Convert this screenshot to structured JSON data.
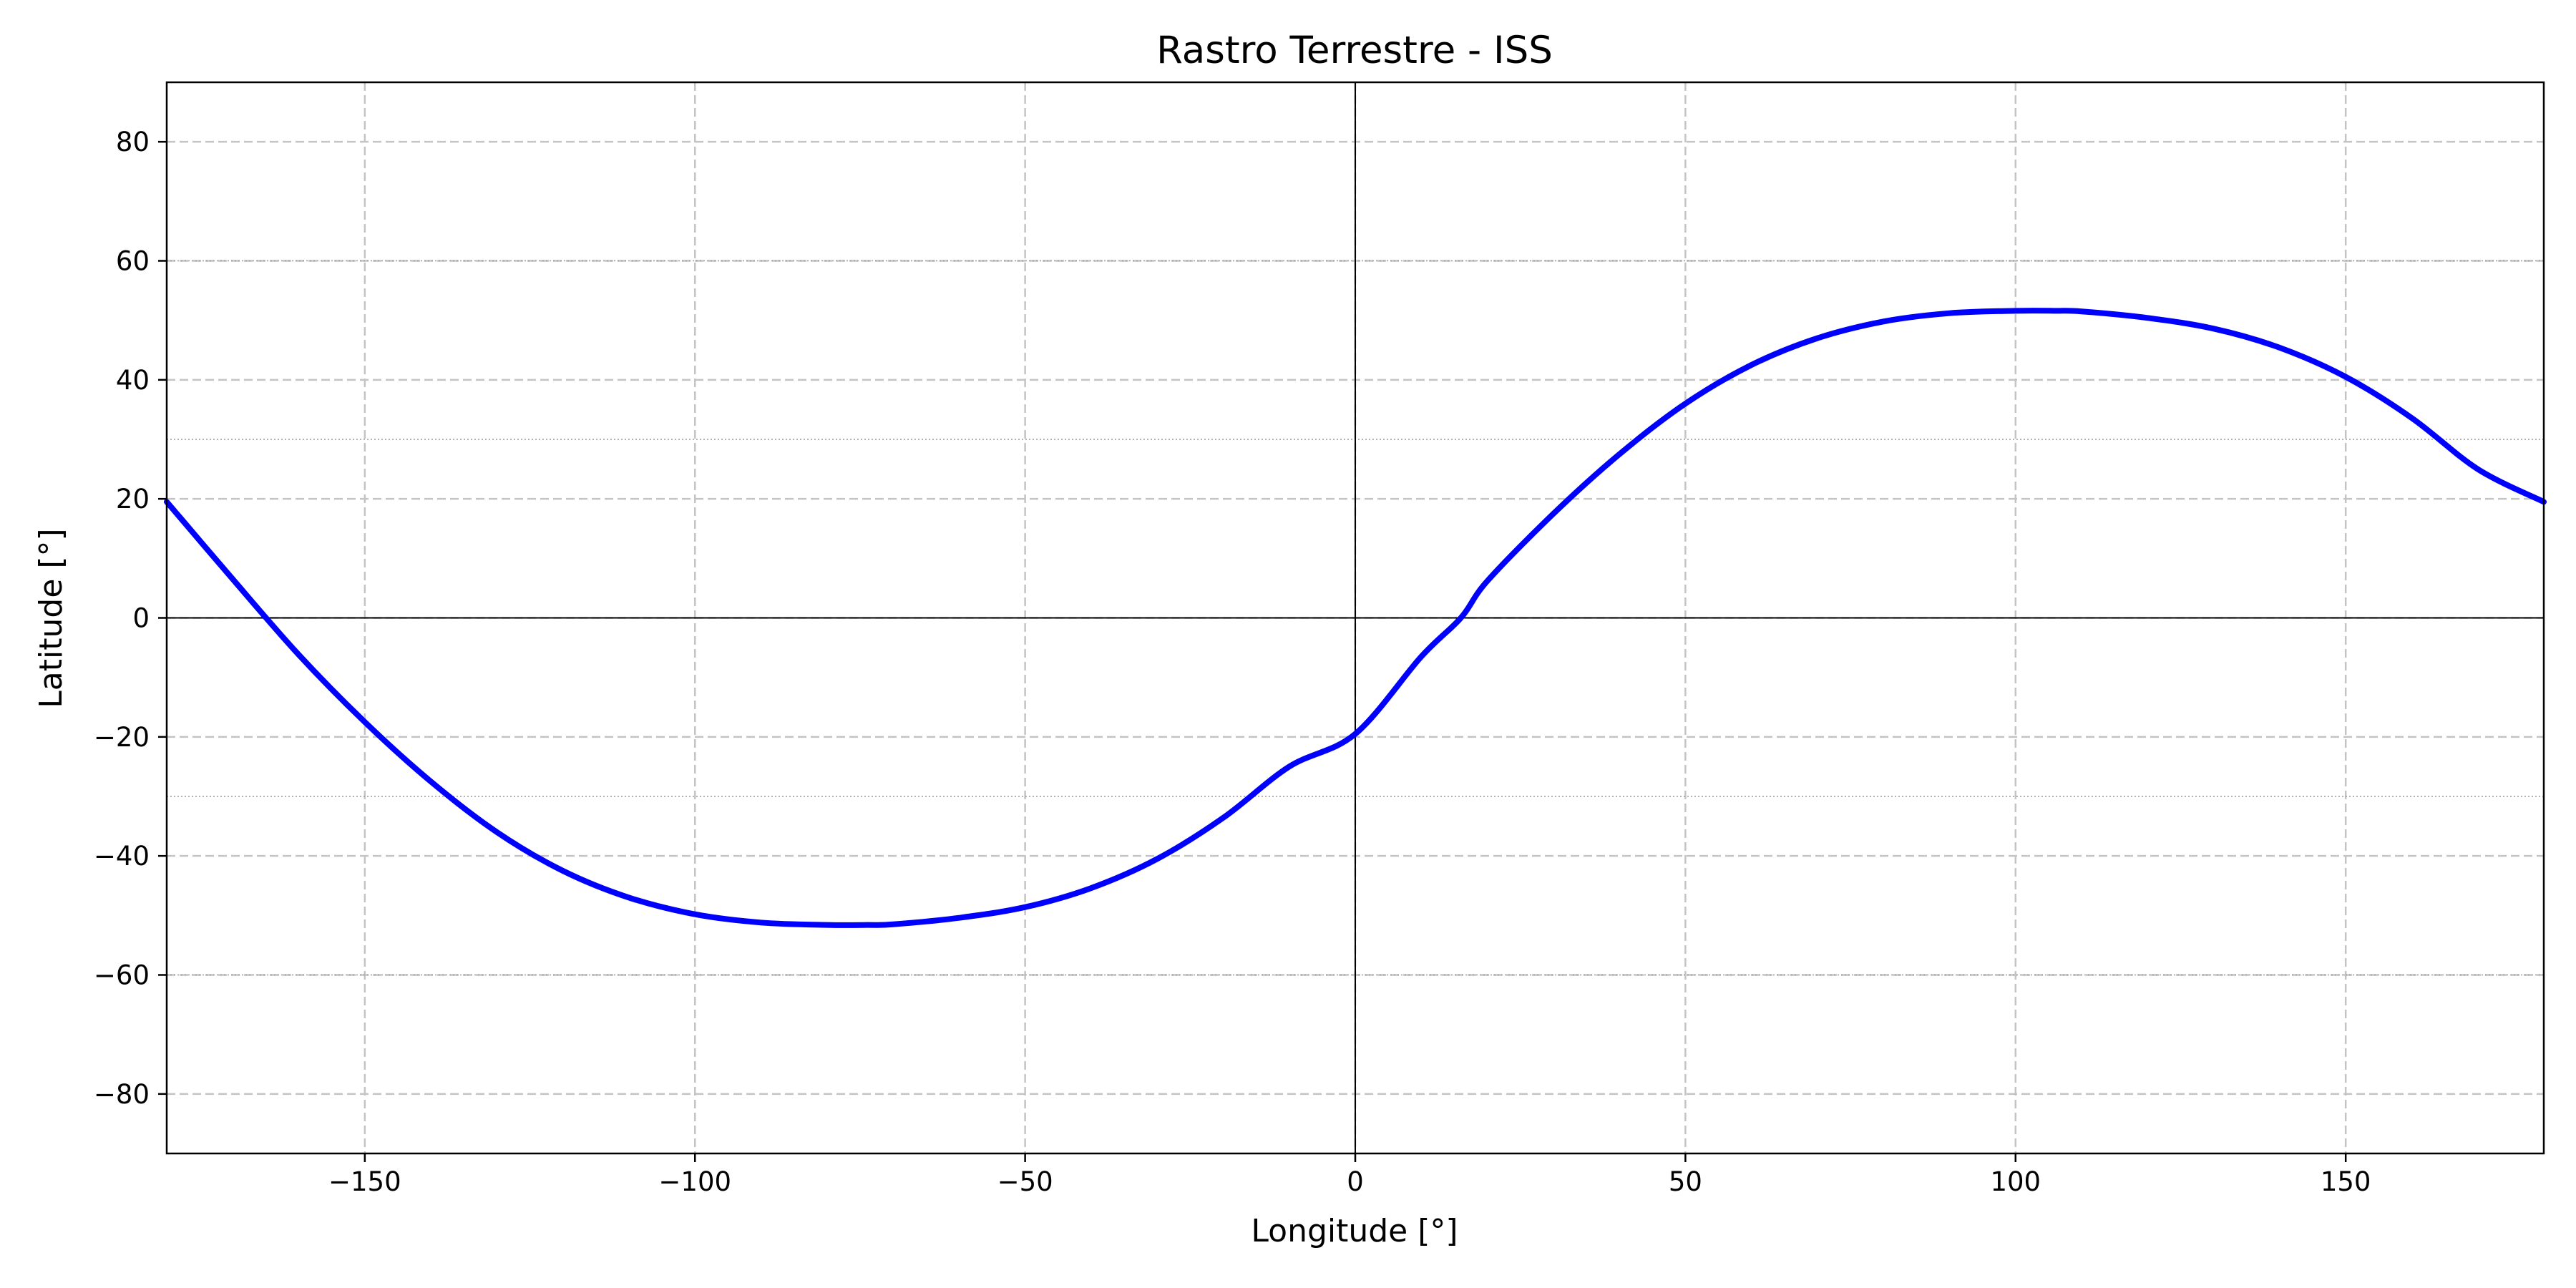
{
  "chart_data": {
    "type": "line",
    "title": "Rastro Terrestre - ISS",
    "xlabel": "Longitude [°]",
    "ylabel": "Latitude [°]",
    "xlim": [
      -180,
      180
    ],
    "ylim": [
      -90,
      90
    ],
    "xticks": [
      -150,
      -100,
      -50,
      0,
      50,
      100,
      150
    ],
    "yticks": [
      -80,
      -60,
      -40,
      -20,
      0,
      20,
      40,
      60,
      80
    ],
    "xtick_labels": [
      "−150",
      "−100",
      "−50",
      "0",
      "50",
      "100",
      "150"
    ],
    "ytick_labels": [
      "−80",
      "−60",
      "−40",
      "−20",
      "0",
      "20",
      "40",
      "60",
      "80"
    ],
    "grid": true,
    "reference_lines": {
      "horizontal": [
        0,
        -60,
        -30,
        30,
        60
      ],
      "vertical": [
        0
      ]
    },
    "series": [
      {
        "color": "#0000ff",
        "x": [
          -180,
          -170,
          -160,
          -150,
          -140,
          -130,
          -120,
          -110,
          -100,
          -90,
          -80,
          -74,
          -70,
          -60,
          -50,
          -40,
          -30,
          -20,
          -10,
          0,
          10,
          16,
          20,
          30,
          40,
          50,
          60,
          70,
          80,
          90,
          100,
          106,
          110,
          120,
          130,
          140,
          150,
          160,
          170,
          180
        ],
        "y": [
          19.5,
          6.5,
          -6.2,
          -17.5,
          -27.5,
          -36.0,
          -42.5,
          -47.0,
          -49.8,
          -51.2,
          -51.6,
          -51.6,
          -51.5,
          -50.4,
          -48.6,
          -45.4,
          -40.5,
          -33.6,
          -25.0,
          -19.5,
          -6.5,
          0,
          6.2,
          17.5,
          27.5,
          36.0,
          42.5,
          47.0,
          49.8,
          51.2,
          51.6,
          51.6,
          51.5,
          50.4,
          48.6,
          45.4,
          40.5,
          33.6,
          25.0,
          19.5
        ]
      }
    ]
  }
}
